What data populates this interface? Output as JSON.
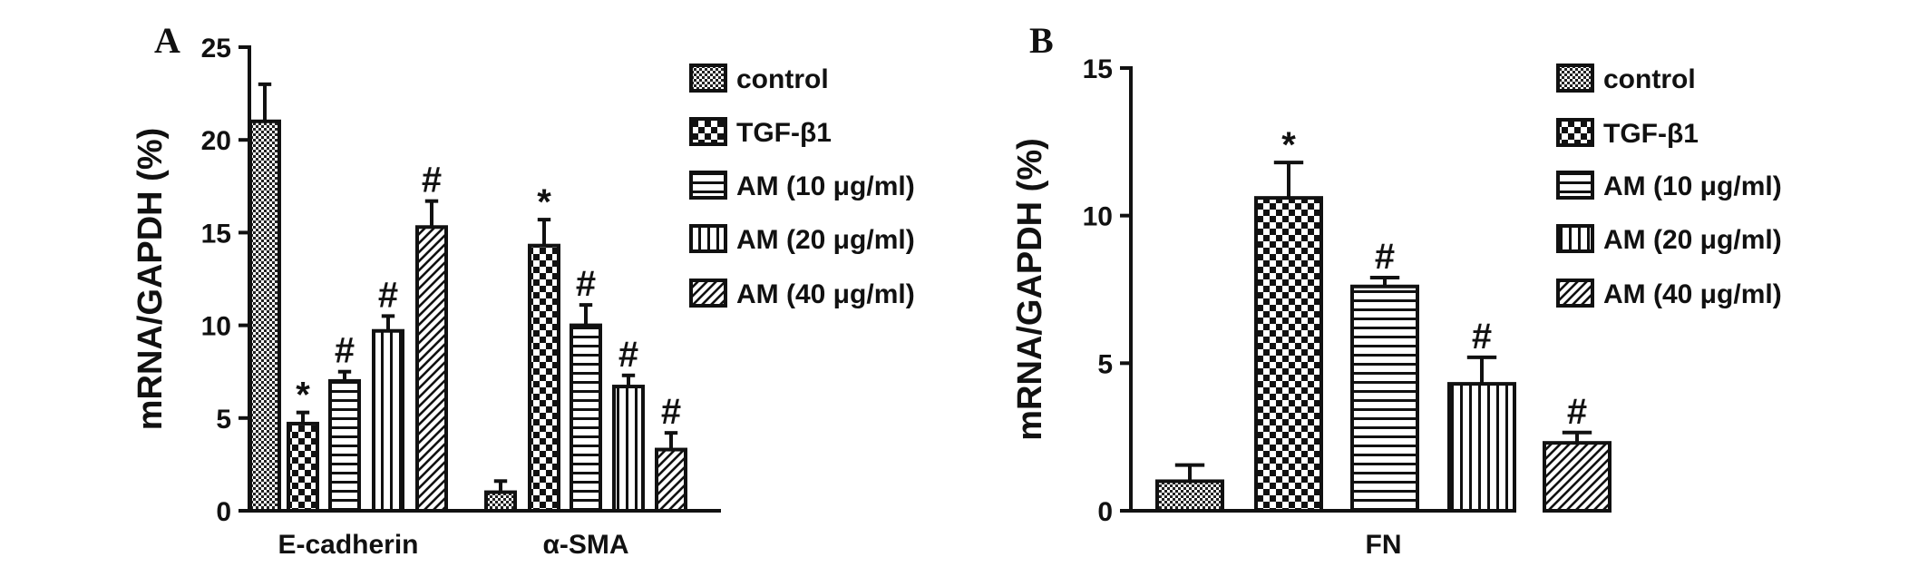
{
  "chart_data": [
    {
      "panel": "A",
      "type": "bar",
      "ylabel": "mRNA/GAPDH (%)",
      "ylim": [
        0,
        25
      ],
      "yticks": [
        "0",
        "5",
        "10",
        "15",
        "20",
        "25"
      ],
      "categories": [
        "E-cadherin",
        "α-SMA"
      ],
      "legend": "right",
      "series": [
        {
          "name": "control",
          "pattern": "fine-dots",
          "values": [
            21.0,
            1.0
          ],
          "errors": [
            2.0,
            0.6
          ],
          "marks": [
            "",
            ""
          ]
        },
        {
          "name": "TGF-β1",
          "pattern": "checker",
          "values": [
            4.7,
            14.3
          ],
          "errors": [
            0.6,
            1.4
          ],
          "marks": [
            "*",
            "*"
          ]
        },
        {
          "name": "AM (10 μg/ml)",
          "pattern": "h-lines",
          "values": [
            7.0,
            10.0
          ],
          "errors": [
            0.5,
            1.1
          ],
          "marks": [
            "#",
            "#"
          ]
        },
        {
          "name": "AM (20 μg/ml)",
          "pattern": "v-lines",
          "values": [
            9.7,
            6.7
          ],
          "errors": [
            0.8,
            0.6
          ],
          "marks": [
            "#",
            "#"
          ]
        },
        {
          "name": "AM (40 μg/ml)",
          "pattern": "diagonal",
          "values": [
            15.3,
            3.3
          ],
          "errors": [
            1.4,
            0.9
          ],
          "marks": [
            "#",
            "#"
          ]
        }
      ]
    },
    {
      "panel": "B",
      "type": "bar",
      "ylabel": "mRNA/GAPDH (%)",
      "ylim": [
        0,
        15
      ],
      "yticks": [
        "0",
        "5",
        "10",
        "15"
      ],
      "categories": [
        "FN"
      ],
      "legend": "right",
      "series": [
        {
          "name": "control",
          "pattern": "fine-dots",
          "values": [
            1.0
          ],
          "errors": [
            0.55
          ],
          "marks": [
            ""
          ]
        },
        {
          "name": "TGF-β1",
          "pattern": "checker",
          "values": [
            10.6
          ],
          "errors": [
            1.2
          ],
          "marks": [
            "*"
          ]
        },
        {
          "name": "AM (10 μg/ml)",
          "pattern": "h-lines",
          "values": [
            7.6
          ],
          "errors": [
            0.3
          ],
          "marks": [
            "#"
          ]
        },
        {
          "name": "AM (20 μg/ml)",
          "pattern": "v-lines",
          "values": [
            4.3
          ],
          "errors": [
            0.9
          ],
          "marks": [
            "#"
          ]
        },
        {
          "name": "AM (40 μg/ml)",
          "pattern": "diagonal",
          "values": [
            2.3
          ],
          "errors": [
            0.35
          ],
          "marks": [
            "#"
          ]
        }
      ]
    }
  ]
}
